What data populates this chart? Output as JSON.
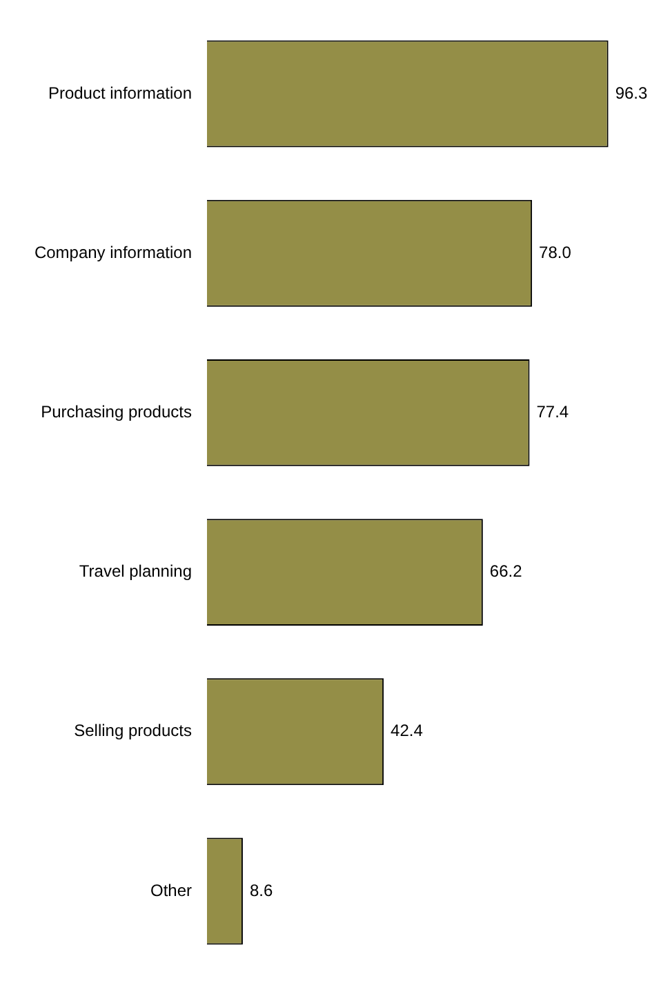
{
  "chart_data": {
    "type": "bar",
    "orientation": "horizontal",
    "categories": [
      "Product information",
      "Company information",
      "Purchasing products",
      "Travel planning",
      "Selling products",
      "Other"
    ],
    "values": [
      96.3,
      78.0,
      77.4,
      66.2,
      42.4,
      8.6
    ],
    "value_labels": [
      "96.3",
      "78.0",
      "77.4",
      "66.2",
      "42.4",
      "8.6"
    ],
    "color": "#948e47"
  }
}
